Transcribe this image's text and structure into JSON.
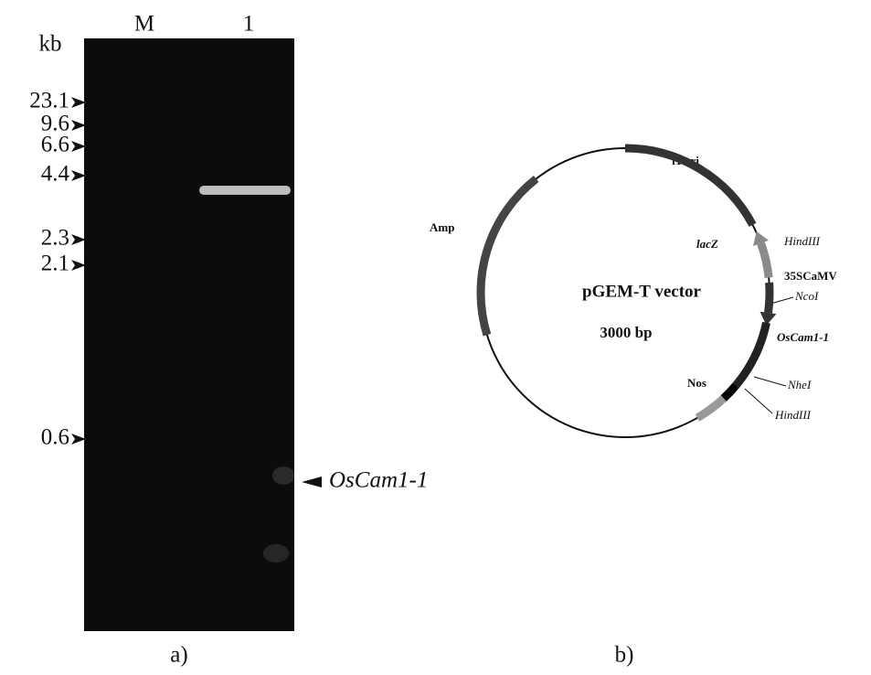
{
  "gel": {
    "unit": "kb",
    "lanes": [
      "M",
      "1"
    ],
    "markers": [
      "23.1",
      "9.6",
      "6.6",
      "4.4",
      "2.3",
      "2.1",
      "0.6"
    ],
    "band_label": "OsCam1-1",
    "caption": "a)"
  },
  "plasmid": {
    "name": "pGEM-T vector",
    "size": "3000 bp",
    "labels": [
      "f1 ori",
      "Amp",
      "lacZ",
      "HindIII",
      "35SCaMV",
      "NcoI",
      "OsCam1-1",
      "NheI",
      "Nos",
      "HindIII"
    ],
    "caption": "b)"
  }
}
